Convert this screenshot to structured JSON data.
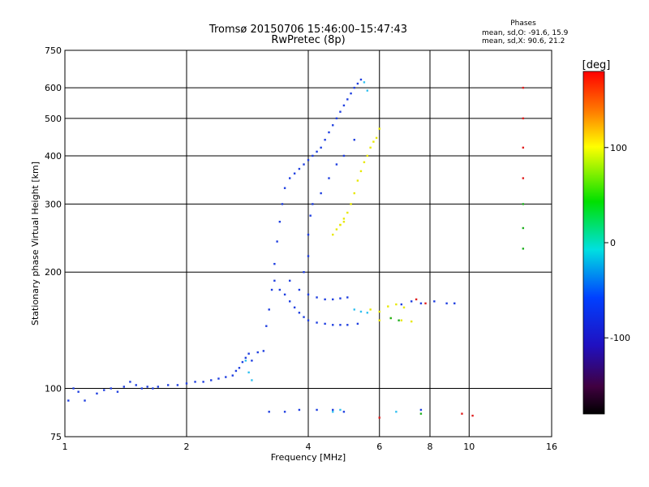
{
  "chart_data": {
    "type": "scatter",
    "title": "Tromsø 20150706 15:46:00–15:47:43",
    "subtitle": "RwPretec (8p)",
    "xlabel": "Frequency [MHz]",
    "ylabel": "Stationary phase Virtual Height [km]",
    "x_scale": "log",
    "y_scale": "log",
    "xlim": [
      1,
      16
    ],
    "ylim": [
      75,
      750
    ],
    "x_ticks": [
      1,
      2,
      4,
      6,
      8,
      10,
      16
    ],
    "y_ticks": [
      75,
      100,
      200,
      300,
      400,
      500,
      600,
      750
    ],
    "grid": true,
    "phases": {
      "heading": "Phases",
      "line_o": "mean, sd,O: -91.6, 15.9",
      "line_x": "mean, sd,X:  90.6, 21.2"
    },
    "colorbar": {
      "label": "[deg]",
      "min": -180,
      "max": 180,
      "ticks": [
        100,
        0,
        -100
      ]
    },
    "series": [
      {
        "color": "#1f3fe0",
        "points": [
          [
            1.02,
            93
          ],
          [
            1.05,
            100
          ],
          [
            1.08,
            98
          ],
          [
            1.12,
            93
          ],
          [
            1.2,
            97
          ],
          [
            1.25,
            99
          ],
          [
            1.3,
            100
          ],
          [
            1.35,
            98
          ],
          [
            1.4,
            101
          ],
          [
            1.45,
            104
          ],
          [
            1.5,
            102
          ],
          [
            1.55,
            100
          ],
          [
            1.6,
            101
          ],
          [
            1.65,
            100
          ],
          [
            1.7,
            101
          ],
          [
            1.8,
            102
          ],
          [
            1.9,
            102
          ],
          [
            2.0,
            103
          ],
          [
            2.1,
            104
          ],
          [
            2.2,
            104
          ],
          [
            2.3,
            105
          ],
          [
            2.4,
            106
          ],
          [
            2.5,
            107
          ],
          [
            2.6,
            108
          ],
          [
            2.65,
            111
          ],
          [
            2.7,
            113
          ],
          [
            2.75,
            117
          ],
          [
            2.8,
            120
          ],
          [
            2.85,
            123
          ],
          [
            2.9,
            118
          ],
          [
            3.0,
            124
          ],
          [
            3.1,
            125
          ],
          [
            3.15,
            145
          ],
          [
            3.2,
            160
          ],
          [
            3.25,
            180
          ],
          [
            3.3,
            210
          ],
          [
            3.35,
            240
          ],
          [
            3.4,
            270
          ],
          [
            3.45,
            300
          ],
          [
            3.5,
            330
          ],
          [
            3.6,
            350
          ],
          [
            3.7,
            360
          ],
          [
            3.8,
            370
          ],
          [
            3.9,
            380
          ],
          [
            4.0,
            390
          ],
          [
            4.1,
            400
          ],
          [
            4.2,
            410
          ],
          [
            4.3,
            420
          ],
          [
            4.4,
            440
          ],
          [
            4.5,
            460
          ],
          [
            4.6,
            480
          ],
          [
            4.7,
            500
          ],
          [
            4.8,
            520
          ],
          [
            4.9,
            540
          ],
          [
            5.0,
            560
          ],
          [
            5.1,
            580
          ],
          [
            5.2,
            600
          ],
          [
            5.3,
            615
          ],
          [
            5.4,
            630
          ],
          [
            3.3,
            190
          ],
          [
            3.4,
            180
          ],
          [
            3.5,
            175
          ],
          [
            3.6,
            168
          ],
          [
            3.7,
            162
          ],
          [
            3.8,
            157
          ],
          [
            3.9,
            153
          ],
          [
            4.0,
            150
          ],
          [
            4.2,
            148
          ],
          [
            4.4,
            147
          ],
          [
            4.6,
            146
          ],
          [
            4.8,
            146
          ],
          [
            5.0,
            146
          ],
          [
            5.3,
            147
          ],
          [
            3.6,
            190
          ],
          [
            3.8,
            180
          ],
          [
            4.0,
            175
          ],
          [
            4.2,
            172
          ],
          [
            4.4,
            170
          ],
          [
            4.6,
            170
          ],
          [
            4.8,
            171
          ],
          [
            5.0,
            172
          ],
          [
            3.9,
            200
          ],
          [
            4.0,
            220
          ],
          [
            4.0,
            250
          ],
          [
            4.05,
            280
          ],
          [
            4.1,
            300
          ],
          [
            4.3,
            320
          ],
          [
            4.5,
            350
          ],
          [
            4.7,
            380
          ],
          [
            4.9,
            400
          ],
          [
            5.2,
            440
          ],
          [
            6.8,
            165
          ],
          [
            7.2,
            168
          ],
          [
            7.6,
            166
          ],
          [
            8.2,
            168
          ],
          [
            8.8,
            166
          ],
          [
            9.2,
            166
          ],
          [
            3.2,
            87
          ],
          [
            3.5,
            87
          ],
          [
            3.8,
            88
          ],
          [
            4.2,
            88
          ],
          [
            4.6,
            88
          ],
          [
            4.9,
            87
          ],
          [
            7.6,
            88
          ]
        ]
      },
      {
        "color": "#e8e800",
        "points": [
          [
            4.6,
            250
          ],
          [
            4.7,
            258
          ],
          [
            4.8,
            265
          ],
          [
            4.9,
            275
          ],
          [
            5.0,
            285
          ],
          [
            5.1,
            300
          ],
          [
            5.2,
            320
          ],
          [
            5.3,
            345
          ],
          [
            5.4,
            365
          ],
          [
            5.5,
            385
          ],
          [
            5.6,
            400
          ],
          [
            5.7,
            420
          ],
          [
            5.8,
            435
          ],
          [
            5.9,
            445
          ],
          [
            6.0,
            470
          ],
          [
            4.8,
            265
          ],
          [
            4.9,
            270
          ],
          [
            5.7,
            160
          ],
          [
            6.0,
            158
          ],
          [
            6.3,
            163
          ],
          [
            6.6,
            165
          ],
          [
            6.9,
            162
          ],
          [
            6.0,
            150
          ],
          [
            6.4,
            152
          ],
          [
            6.8,
            150
          ],
          [
            7.2,
            149
          ]
        ]
      },
      {
        "color": "#30c0f0",
        "points": [
          [
            2.8,
            118
          ],
          [
            2.85,
            110
          ],
          [
            2.9,
            105
          ],
          [
            5.2,
            160
          ],
          [
            5.4,
            158
          ],
          [
            5.6,
            157
          ],
          [
            5.5,
            620
          ],
          [
            5.6,
            590
          ],
          [
            4.6,
            87
          ],
          [
            4.8,
            88
          ],
          [
            6.6,
            87
          ]
        ]
      },
      {
        "color": "#e02020",
        "points": [
          [
            7.4,
            170
          ],
          [
            7.8,
            166
          ],
          [
            9.6,
            86
          ],
          [
            10.2,
            85
          ],
          [
            6.0,
            84
          ],
          [
            13.6,
            600
          ],
          [
            13.6,
            500
          ],
          [
            13.6,
            420
          ],
          [
            13.6,
            350
          ]
        ]
      },
      {
        "color": "#20b020",
        "points": [
          [
            6.4,
            152
          ],
          [
            6.7,
            150
          ],
          [
            7.6,
            86
          ],
          [
            13.6,
            300
          ],
          [
            13.6,
            260
          ],
          [
            13.6,
            230
          ]
        ]
      }
    ]
  }
}
